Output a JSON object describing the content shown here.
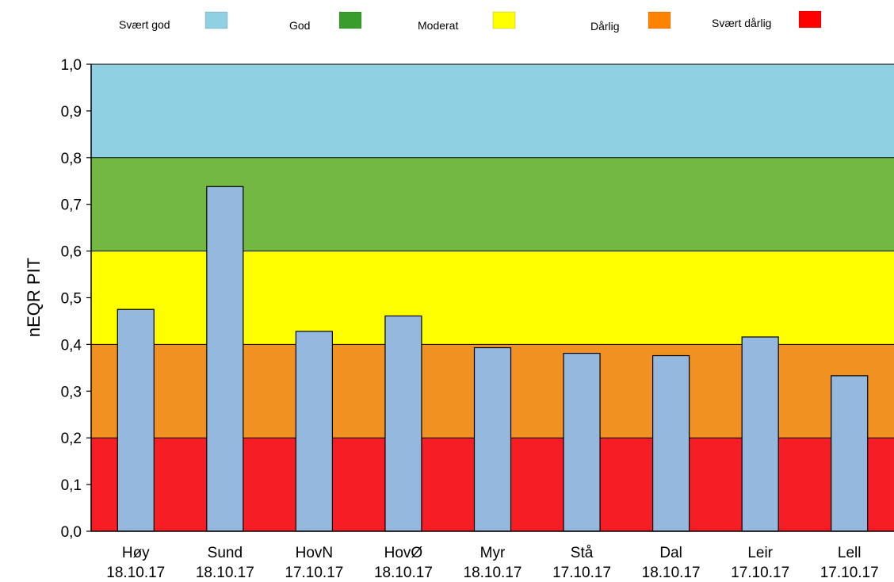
{
  "chart_data": {
    "type": "bar",
    "ylabel": "nEQR PIT",
    "ylim": [
      0,
      1
    ],
    "yticks": [
      "0,0",
      "0,1",
      "0,2",
      "0,3",
      "0,4",
      "0,5",
      "0,6",
      "0,7",
      "0,8",
      "0,9",
      "1,0"
    ],
    "categories": [
      {
        "name": "Høy",
        "date": "18.10.17"
      },
      {
        "name": "Sund",
        "date": "18.10.17"
      },
      {
        "name": "HovN",
        "date": "17.10.17"
      },
      {
        "name": "HovØ",
        "date": "18.10.17"
      },
      {
        "name": "Myr",
        "date": "18.10.17"
      },
      {
        "name": "Stå",
        "date": "17.10.17"
      },
      {
        "name": "Dal",
        "date": "18.10.17"
      },
      {
        "name": "Leir",
        "date": "17.10.17"
      },
      {
        "name": "Lell",
        "date": "17.10.17"
      }
    ],
    "values": [
      0.475,
      0.738,
      0.428,
      0.461,
      0.393,
      0.381,
      0.376,
      0.416,
      0.333
    ],
    "bar_color": "#95b8df",
    "legend_position": "top",
    "classes": [
      {
        "label": "Svært god",
        "from": 0.8,
        "to": 1.0,
        "band_color": "#8fd0e3",
        "swatch_color": "#8fd0e3"
      },
      {
        "label": "God",
        "from": 0.6,
        "to": 0.8,
        "band_color": "#72b843",
        "swatch_color": "#3a9c2c"
      },
      {
        "label": "Moderat",
        "from": 0.4,
        "to": 0.6,
        "band_color": "#ffff00",
        "swatch_color": "#ffff00"
      },
      {
        "label": "Dårlig",
        "from": 0.2,
        "to": 0.4,
        "band_color": "#f09121",
        "swatch_color": "#ff8300"
      },
      {
        "label": "Svært dårlig",
        "from": 0.0,
        "to": 0.2,
        "band_color": "#f61d24",
        "swatch_color": "#ff0000"
      }
    ]
  }
}
